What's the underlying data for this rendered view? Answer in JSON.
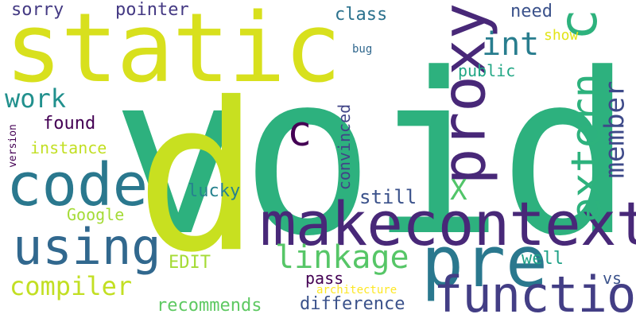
{
  "words": {
    "void": {
      "text": "void",
      "color": "#2db17e"
    },
    "static": {
      "text": "static",
      "color": "#d8e01d"
    },
    "p": {
      "text": "p",
      "color": "#c8e020"
    },
    "makecontext": {
      "text": "makecontext",
      "color": "#482878"
    },
    "pre": {
      "text": "pre",
      "color": "#2a788e"
    },
    "function": {
      "text": "function",
      "color": "#433e85"
    },
    "code": {
      "text": "code",
      "color": "#2a788e"
    },
    "using": {
      "text": "using",
      "color": "#31688e"
    },
    "proxy": {
      "text": "proxy",
      "color": "#482878"
    },
    "extern": {
      "text": "extern",
      "color": "#2db27d"
    },
    "c_big": {
      "text": "c",
      "color": "#2db27d"
    },
    "linkage": {
      "text": "linkage",
      "color": "#56c667"
    },
    "member": {
      "text": "member",
      "color": "#3e4a89"
    },
    "int": {
      "text": "int",
      "color": "#287d8e"
    },
    "c_small": {
      "text": "c",
      "color": "#440154"
    },
    "compiler": {
      "text": "compiler",
      "color": "#c2df23"
    },
    "work": {
      "text": "work",
      "color": "#21908d"
    },
    "x": {
      "text": "X",
      "color": "#52c569"
    },
    "sorry": {
      "text": "sorry",
      "color": "#443a83"
    },
    "pointer": {
      "text": "pointer",
      "color": "#443983"
    },
    "class": {
      "text": "class",
      "color": "#2c728e"
    },
    "need": {
      "text": "need",
      "color": "#3b528b"
    },
    "show": {
      "text": "show",
      "color": "#e2e418"
    },
    "public": {
      "text": "public",
      "color": "#22a785"
    },
    "bug": {
      "text": "bug",
      "color": "#31688e"
    },
    "found": {
      "text": "found",
      "color": "#440154"
    },
    "instance": {
      "text": "instance",
      "color": "#c2df23"
    },
    "version": {
      "text": "version",
      "color": "#440154"
    },
    "convinced": {
      "text": "convinced",
      "color": "#414487"
    },
    "lucky": {
      "text": "lucky",
      "color": "#26828e"
    },
    "still": {
      "text": "still",
      "color": "#3b528b"
    },
    "google": {
      "text": "Google",
      "color": "#a5db36"
    },
    "edit": {
      "text": "EDIT",
      "color": "#a5db36"
    },
    "well": {
      "text": "well",
      "color": "#1fa187"
    },
    "pass": {
      "text": "pass",
      "color": "#440154"
    },
    "vs": {
      "text": "vs",
      "color": "#3b528b"
    },
    "architecture": {
      "text": "architecture",
      "color": "#fde725"
    },
    "recommends": {
      "text": "recommends",
      "color": "#5ec962"
    },
    "difference": {
      "text": "difference",
      "color": "#3b528b"
    }
  }
}
